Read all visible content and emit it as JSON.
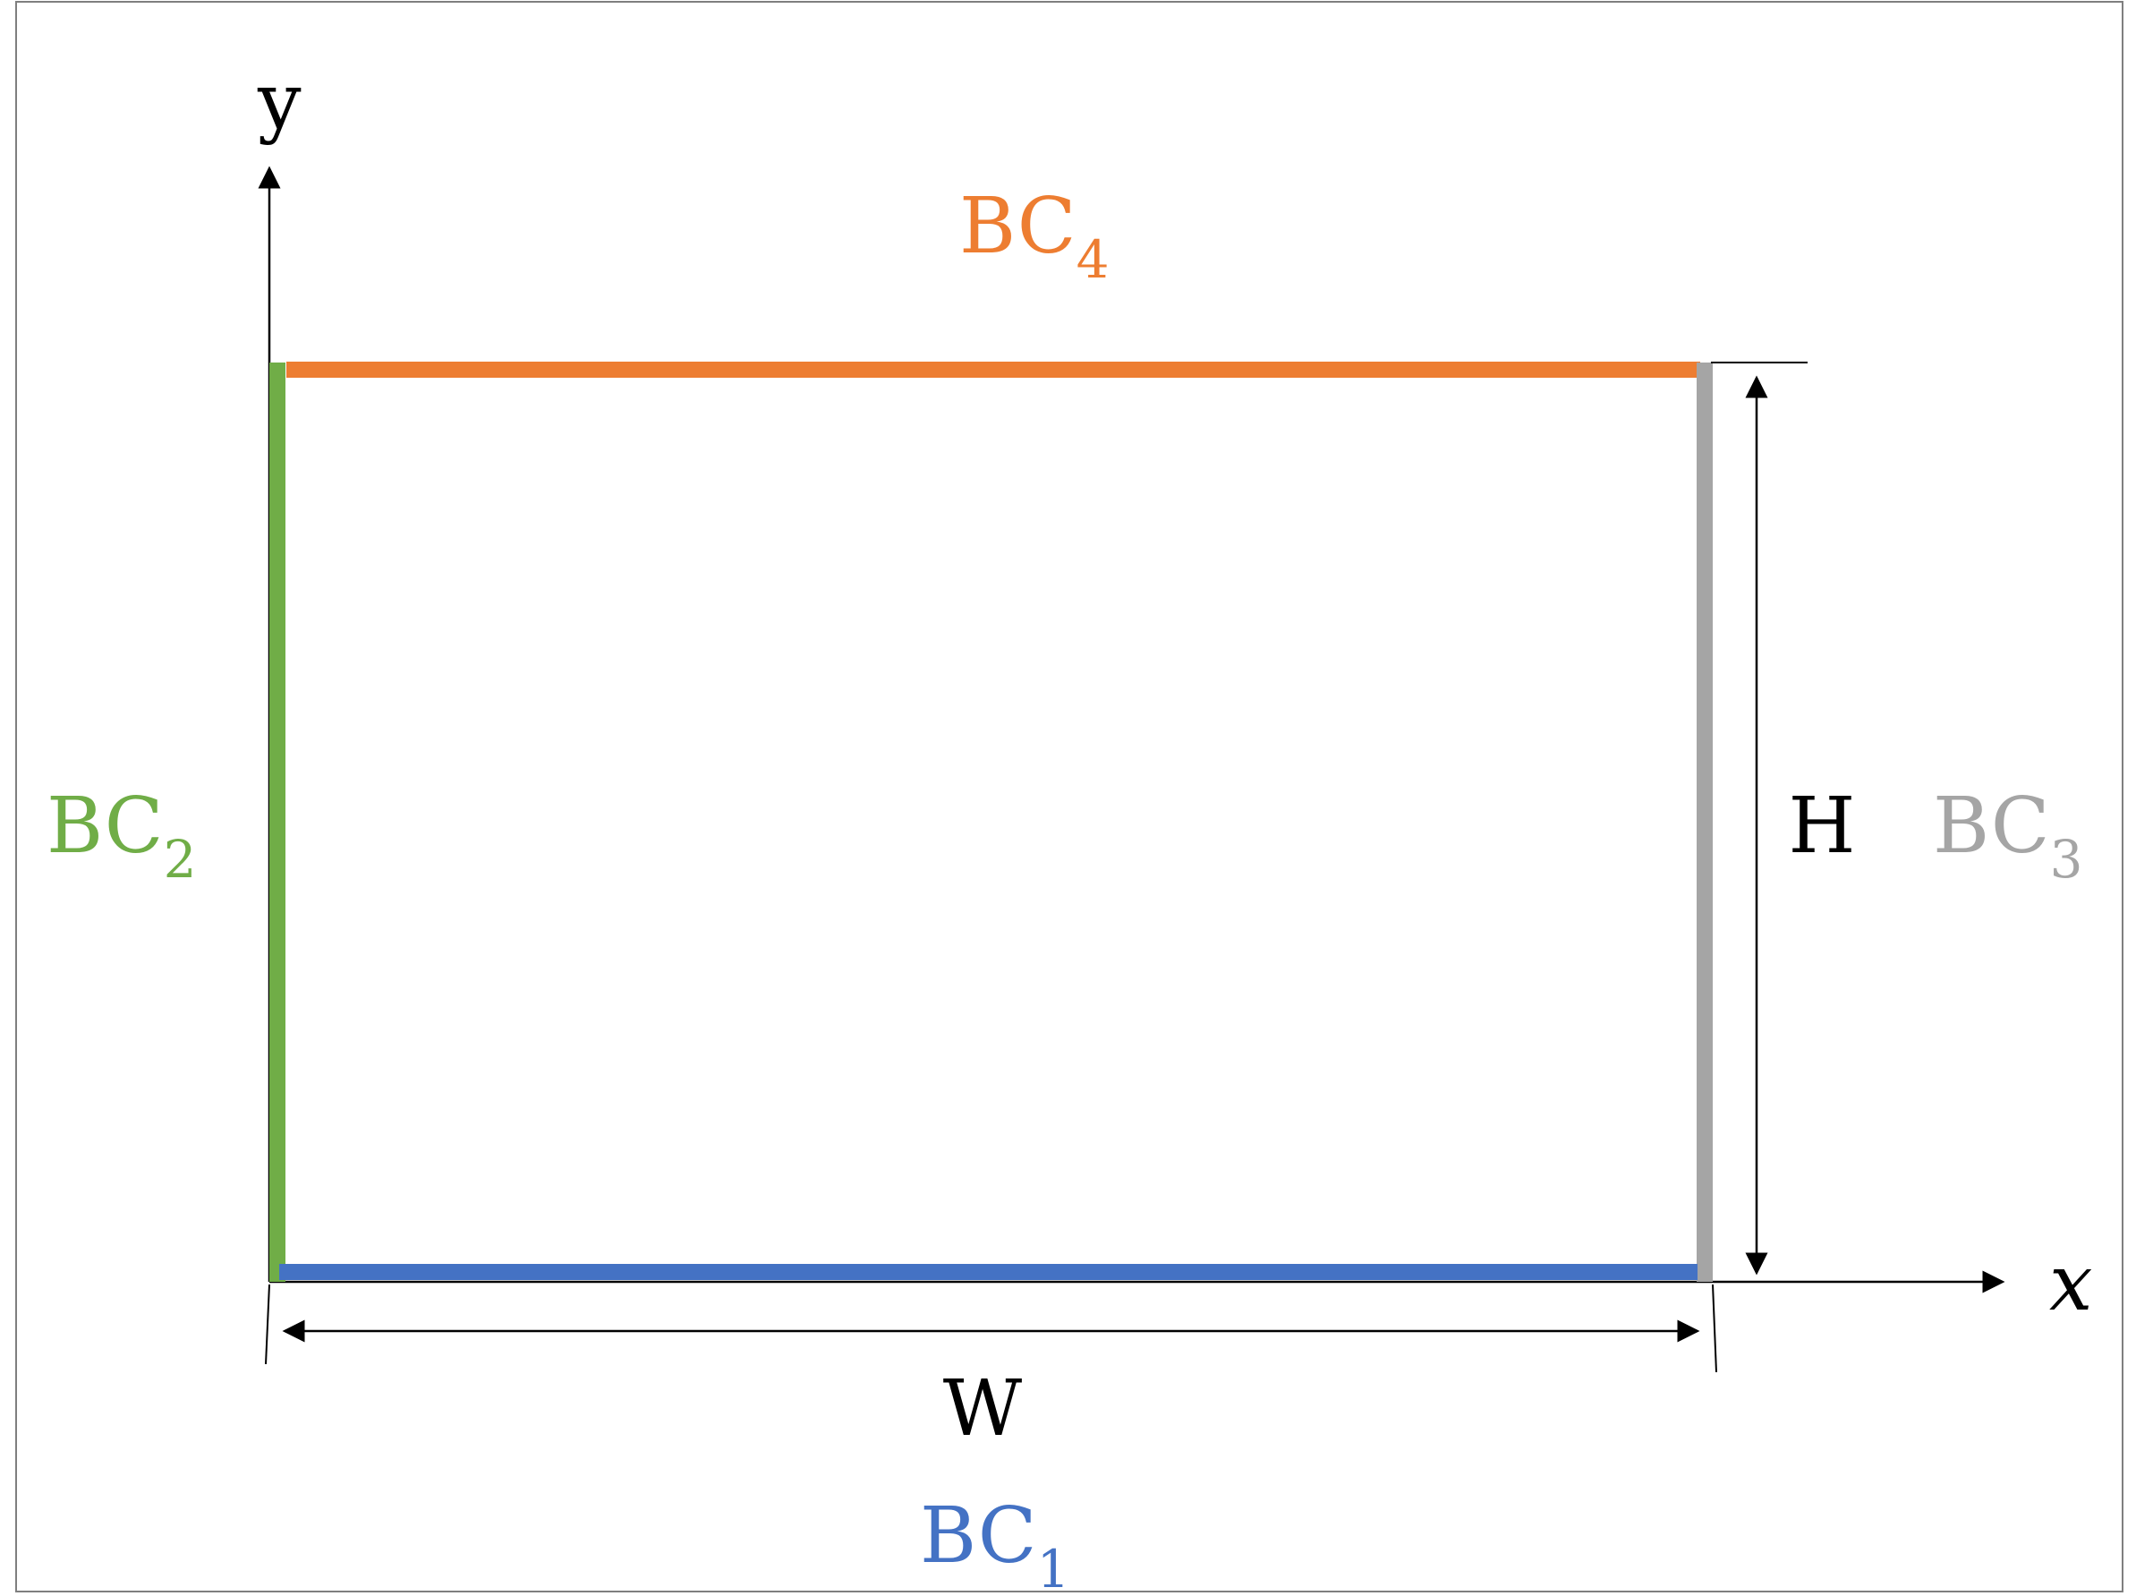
{
  "axes": {
    "x_label": "x",
    "y_label": "y"
  },
  "dimensions": {
    "width_label": "W",
    "height_label": "H"
  },
  "boundaries": {
    "bottom": {
      "base": "BC",
      "index": "1",
      "color": "#4472C4"
    },
    "left": {
      "base": "BC",
      "index": "2",
      "color": "#70AD47"
    },
    "right": {
      "base": "BC",
      "index": "3",
      "color": "#A5A5A5"
    },
    "top": {
      "base": "BC",
      "index": "4",
      "color": "#ED7D31"
    }
  },
  "colors": {
    "ink": "#000000",
    "frame": "#7f7f7f"
  }
}
